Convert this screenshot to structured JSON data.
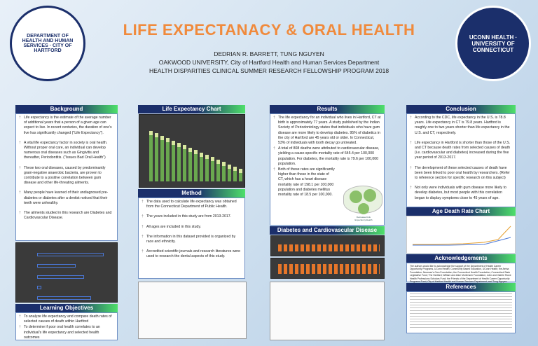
{
  "header": {
    "title": "LIFE EXPECTANACY & ORAL HEALTH",
    "authors": "DEDRIAN R. BARRETT, TUNG NGUYEN",
    "affiliation": "OAKWOOD UNIVERSITY, City of Hartford Health and Human Services Department",
    "program": "HEALTH DISPARITIES CLINICAL SUMMER RESEARCH FELLOWSHIP PROGRAM 2018"
  },
  "logos": {
    "left": "DEPARTMENT OF HEALTH AND HUMAN SERVICES · CITY OF HARTFORD",
    "right": "UCONN HEALTH · UNIVERSITY OF CONNECTICUT"
  },
  "background": {
    "title": "Background",
    "bullets": [
      "Life expectancy is the estimate of the average number of additional years that a person of a given age can expect to live. In recent centuries, the duration of one's live has significantly changed (\"Life Expectancy\").",
      "A vital life expectancy factor in society is oral health. Without proper oral care, an individual can develop numerous oral diseases such as Gingivitis and thereafter, Periodontitis. (\"Issues Bad Oral Health\")",
      "These two oral diseases, caused by predominantly gram-negative anaerobic bacteria, are proven to contribute to a positive correlation between gum disease and other life-threating ailments.",
      "Many people have learned of their undiagnosed pre-diabetes or diabetes after a dentist noticed that their teeth were unhealthy.",
      "The ailments studied in this research are Diabetes and Cardiovascular Disease."
    ]
  },
  "objectives": {
    "title": "Learning Objectives",
    "bullets": [
      "To analyze life expectancy and compare death rates of selected causes of death within Hartford",
      "To determine if poor oral health correlates to an individual's life expectancy and selected health outcomes"
    ]
  },
  "le_chart": {
    "title": "Life Expectancy Chart"
  },
  "method": {
    "title": "Method",
    "bullets": [
      "The data used to calculate life expectancy was obtained from the Connecticut Department of Public Health.",
      "The years included in this study are from 2013-2017.",
      "All ages are included in this study.",
      "The information in this dataset provided is organized by race and ethnicity.",
      "Accredited scientific journals and research literatures were used to research the dental aspects of this study."
    ]
  },
  "results": {
    "title": "Results",
    "bullets": [
      "The life expectancy for an individual who lives in Hartford, CT at birth is approximately 77 years. A study published by the Indian Society of Periodontology states that individuals who have gum disease are more likely to develop diabetes. 95% of diabetics in the city of Hartford are 45 years old or older. In Connecticut, 53% of individuals with tooth decay go untreated.",
      "A total of 808 deaths were attributed to cardiovascular disease, yielding a cause-specific mortality rate of 645.4 per 100,000 population. For diabetes, the mortality rate is 79.6 per 100,000 population.",
      "Both of these rates are significantly higher than those in the state of CT, which has a heart disease mortality rate of 198.1 per 100,000 population and diabetes mellitus mortality rate of 18.5 per 100,000."
    ],
    "funnel_label": "Decreased Life Expectancy/Health"
  },
  "dcd": {
    "title": "Diabetes and Cardiovascular Disease"
  },
  "conclusion": {
    "title": "Conclusion",
    "bullets": [
      "According to the CDC, life expectancy in the U.S. is 78.8 years. Life expectancy in CT is 79.8 years. Hartford is roughly one to two years shorter than life expectancy in the U.S. and CT, respectively.",
      "Life expectancy in Hartford is shorter than those of the U.S. and CT because death rates from selected causes of death (i.e. cardiovascular and diabetes) increased during the five year period of 2013-2017.",
      "The development of these selected causes of death have been been linked to poor oral health by researchers. (Refer to reference section for specific research on this subject)",
      "Not only were individuals with gum disease more likely to develop diabetes, but most people with this correlation began to display symptoms close to 45 years of age."
    ]
  },
  "age_chart": {
    "title": "Age Death Rate Chart"
  },
  "ack": {
    "title": "Acknowledgements",
    "text": "The authors would like to acknowledge the support of the Department of Health Career Opportunity Programs, UConn Health; Community Based Education, UConn Health; the Aetna Foundation; Newman's Own Foundation; the Connecticut Health Foundation; Connecticut State Legislative Fund; The Hartford; William and Alice Mortensen Foundation; John and Valerie Rowe Health Professions Scholars Fund; the Friends of the Department of Health Career Opportunity Programs Fund; City of Hartford Health and Human Services Department; and Tung Nguyen."
  },
  "refs": {
    "title": "References"
  }
}
